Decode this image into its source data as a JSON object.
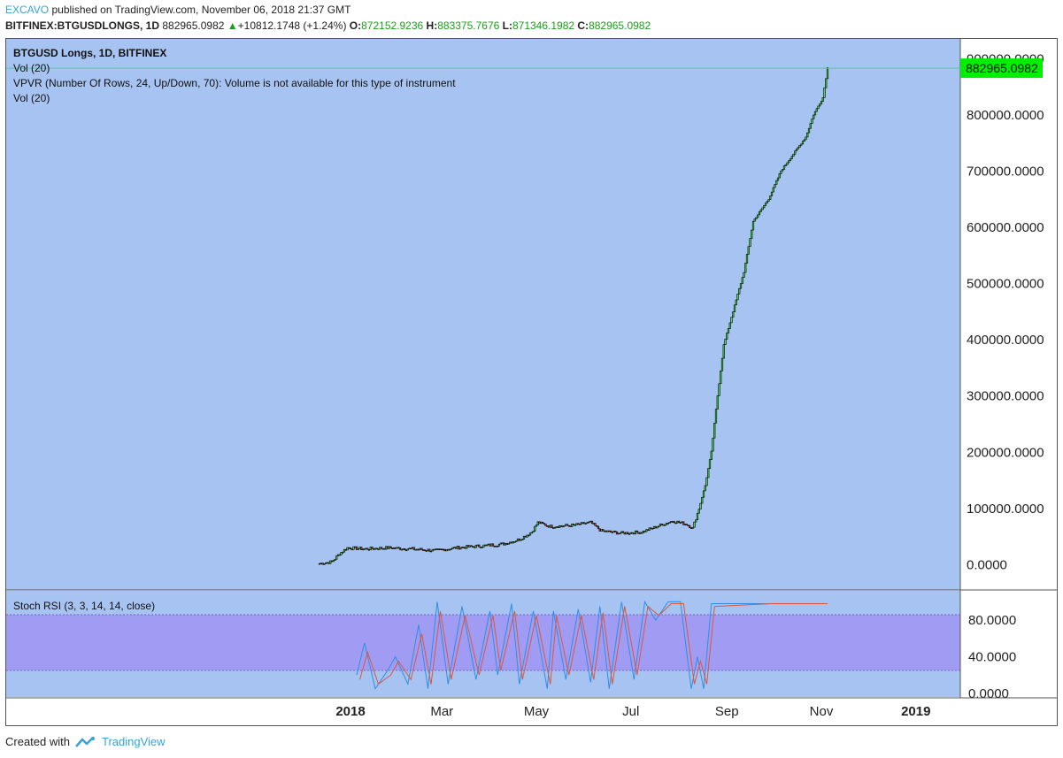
{
  "header": {
    "author": "EXCAVO",
    "published_text": "published on TradingView.com, November 06, 2018 21:37 GMT",
    "symbol": "BITFINEX:BTGUSDLONGS, 1D",
    "last": "882965.0982",
    "change": "+10812.1748 (+1.24%)",
    "o_label": "O:",
    "o_val": "872152.9236",
    "h_label": "H:",
    "h_val": "883375.7676",
    "l_label": "L:",
    "l_val": "871346.1982",
    "c_label": "C:",
    "c_val": "882965.0982"
  },
  "legend": {
    "title": "BTGUSD Longs, 1D, BITFINEX",
    "vol1": "Vol (20)",
    "vpvr": "VPVR (Number Of Rows, 24, Up/Down, 70): Volume is not available for this type of instrument",
    "vol2": "Vol (20)",
    "stoch": "Stoch RSI (3, 3, 14, 14, close)"
  },
  "price_tag": "882965.0982",
  "footer": {
    "created": "Created with",
    "brand": "TradingView"
  },
  "colors": {
    "pane_bg": "#a7c3f1",
    "band": "#a19cf3",
    "up": "#3fe23f",
    "down": "#d23b3b",
    "k_line": "#2f8ee6",
    "d_line": "#e0553d",
    "price_tag_bg": "#00ee00"
  },
  "chart_data": [
    {
      "type": "candlestick",
      "title": "BTGUSD Longs, 1D, BITFINEX",
      "y_ticks": [
        0,
        100000,
        200000,
        300000,
        400000,
        500000,
        600000,
        700000,
        800000,
        900000
      ],
      "y_tick_labels": [
        "0.0000",
        "100000.0000",
        "200000.0000",
        "300000.0000",
        "400000.0000",
        "500000.0000",
        "600000.0000",
        "700000.0000",
        "800000.0000",
        "900000.0000"
      ],
      "x_labels": [
        "2018",
        "Mar",
        "May",
        "Jul",
        "Sep",
        "Nov",
        "2019"
      ],
      "x_label_dates": [
        "2018-01-01",
        "2018-03-01",
        "2018-05-01",
        "2018-07-01",
        "2018-09-01",
        "2018-11-01",
        "2019-01-01"
      ],
      "ylim": [
        -45000,
        935000
      ],
      "close_path": [
        [
          "2017-12-12",
          2000
        ],
        [
          "2017-12-20",
          5000
        ],
        [
          "2017-12-25",
          20000
        ],
        [
          "2017-12-30",
          30000
        ],
        [
          "2018-01-10",
          28000
        ],
        [
          "2018-01-25",
          30000
        ],
        [
          "2018-02-10",
          28000
        ],
        [
          "2018-02-25",
          25000
        ],
        [
          "2018-03-10",
          30000
        ],
        [
          "2018-03-25",
          33000
        ],
        [
          "2018-04-10",
          37000
        ],
        [
          "2018-04-20",
          45000
        ],
        [
          "2018-04-28",
          58000
        ],
        [
          "2018-05-02",
          75000
        ],
        [
          "2018-05-10",
          68000
        ],
        [
          "2018-05-25",
          70000
        ],
        [
          "2018-06-05",
          75000
        ],
        [
          "2018-06-12",
          60000
        ],
        [
          "2018-06-25",
          56000
        ],
        [
          "2018-07-08",
          58000
        ],
        [
          "2018-07-18",
          68000
        ],
        [
          "2018-07-28",
          78000
        ],
        [
          "2018-08-06",
          72000
        ],
        [
          "2018-08-10",
          65000
        ],
        [
          "2018-08-14",
          100000
        ],
        [
          "2018-08-18",
          140000
        ],
        [
          "2018-08-22",
          200000
        ],
        [
          "2018-08-26",
          300000
        ],
        [
          "2018-08-30",
          390000
        ],
        [
          "2018-09-05",
          450000
        ],
        [
          "2018-09-12",
          520000
        ],
        [
          "2018-09-18",
          610000
        ],
        [
          "2018-09-28",
          650000
        ],
        [
          "2018-10-06",
          700000
        ],
        [
          "2018-10-14",
          730000
        ],
        [
          "2018-10-22",
          760000
        ],
        [
          "2018-10-27",
          800000
        ],
        [
          "2018-11-02",
          830000
        ],
        [
          "2018-11-05",
          882965
        ]
      ],
      "last_value": 882965.0982
    },
    {
      "type": "line",
      "title": "Stoch RSI (3, 3, 14, 14, close)",
      "y_ticks": [
        0,
        40,
        80
      ],
      "y_tick_labels": [
        "0.0000",
        "40.0000",
        "80.0000"
      ],
      "band": [
        20,
        80
      ],
      "ylim": [
        -5,
        112
      ],
      "series": [
        {
          "x": [
            "2018-01-05",
            "2018-01-10",
            "2018-01-17",
            "2018-01-25",
            "2018-01-30",
            "2018-02-07",
            "2018-02-14",
            "2018-02-20",
            "2018-02-26",
            "2018-03-05",
            "2018-03-14",
            "2018-03-23",
            "2018-04-01",
            "2018-04-06",
            "2018-04-15",
            "2018-04-20",
            "2018-04-29",
            "2018-05-08",
            "2018-05-12",
            "2018-05-20",
            "2018-05-28",
            "2018-06-05",
            "2018-06-11",
            "2018-06-17",
            "2018-06-25",
            "2018-07-03",
            "2018-07-10",
            "2018-07-17",
            "2018-07-25",
            "2018-08-02",
            "2018-08-09",
            "2018-08-13",
            "2018-08-17",
            "2018-08-22",
            "2018-09-30",
            "2018-11-05"
          ],
          "values": [
            20,
            55,
            5,
            25,
            40,
            10,
            75,
            5,
            100,
            10,
            95,
            15,
            90,
            20,
            98,
            10,
            90,
            5,
            90,
            15,
            92,
            12,
            95,
            5,
            100,
            15,
            100,
            80,
            100,
            100,
            5,
            40,
            5,
            98,
            98,
            98
          ]
        },
        {
          "x": [
            "2018-01-07",
            "2018-01-12",
            "2018-01-19",
            "2018-01-27",
            "2018-02-01",
            "2018-02-09",
            "2018-02-16",
            "2018-02-22",
            "2018-02-28",
            "2018-03-07",
            "2018-03-16",
            "2018-03-25",
            "2018-04-03",
            "2018-04-08",
            "2018-04-17",
            "2018-04-22",
            "2018-05-01",
            "2018-05-10",
            "2018-05-14",
            "2018-05-22",
            "2018-05-30",
            "2018-06-07",
            "2018-06-13",
            "2018-06-19",
            "2018-06-27",
            "2018-07-05",
            "2018-07-12",
            "2018-07-19",
            "2018-07-27",
            "2018-08-04",
            "2018-08-11",
            "2018-08-15",
            "2018-08-19",
            "2018-08-24",
            "2018-09-30",
            "2018-11-05"
          ],
          "values": [
            15,
            45,
            10,
            20,
            35,
            15,
            65,
            10,
            90,
            15,
            85,
            20,
            85,
            25,
            90,
            15,
            85,
            10,
            85,
            20,
            85,
            15,
            88,
            10,
            95,
            20,
            95,
            85,
            98,
            98,
            10,
            35,
            10,
            95,
            98,
            98
          ]
        }
      ]
    }
  ]
}
